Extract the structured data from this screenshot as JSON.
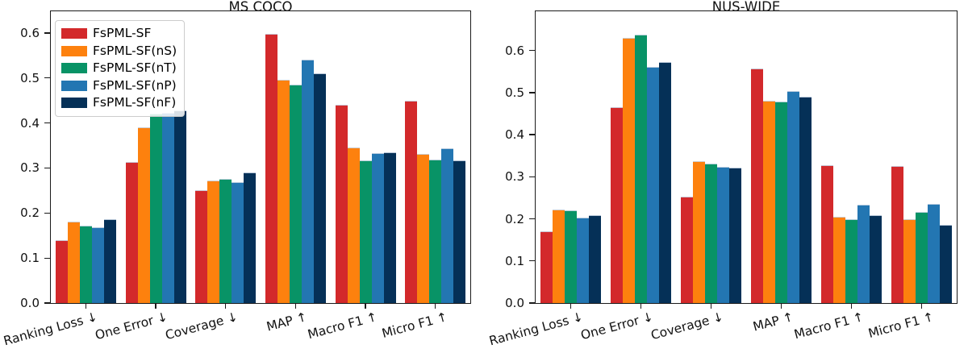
{
  "figure": {
    "background": "#ffffff",
    "legend": {
      "position": "upper-left of MS COCO panel",
      "entries": [
        {
          "label": "FsPML-SF",
          "color": "#d3292b"
        },
        {
          "label": "FsPML-SF(nS)",
          "color": "#fd810e"
        },
        {
          "label": "FsPML-SF(nT)",
          "color": "#089366"
        },
        {
          "label": "FsPML-SF(nP)",
          "color": "#2376b2"
        },
        {
          "label": "FsPML-SF(nF)",
          "color": "#053057"
        }
      ]
    }
  },
  "chart_data": [
    {
      "type": "bar",
      "title": "MS COCO",
      "categories": [
        "Ranking Loss ↓",
        "One Error ↓",
        "Coverage ↓",
        "MAP ↑",
        "Macro F1 ↑",
        "Micro F1 ↑"
      ],
      "series": [
        {
          "name": "FsPML-SF",
          "values": [
            0.14,
            0.313,
            0.25,
            0.598,
            0.441,
            0.45
          ]
        },
        {
          "name": "FsPML-SF(nS)",
          "values": [
            0.18,
            0.39,
            0.272,
            0.495,
            0.345,
            0.332
          ]
        },
        {
          "name": "FsPML-SF(nT)",
          "values": [
            0.171,
            0.42,
            0.275,
            0.485,
            0.316,
            0.319
          ]
        },
        {
          "name": "FsPML-SF(nP)",
          "values": [
            0.169,
            0.423,
            0.269,
            0.54,
            0.333,
            0.343
          ]
        },
        {
          "name": "FsPML-SF(nF)",
          "values": [
            0.187,
            0.428,
            0.29,
            0.511,
            0.335,
            0.316
          ]
        }
      ],
      "yticks": [
        0.0,
        0.1,
        0.2,
        0.3,
        0.4,
        0.5,
        0.6
      ],
      "ylim": [
        0,
        0.648
      ],
      "grid": false,
      "xlabel": "",
      "ylabel": ""
    },
    {
      "type": "bar",
      "title": "NUS-WIDE",
      "categories": [
        "Ranking Loss ↓",
        "One Error ↓",
        "Coverage ↓",
        "MAP ↑",
        "Macro F1 ↑",
        "Micro F1 ↑"
      ],
      "series": [
        {
          "name": "FsPML-SF",
          "values": [
            0.17,
            0.465,
            0.252,
            0.558,
            0.327,
            0.325
          ]
        },
        {
          "name": "FsPML-SF(nS)",
          "values": [
            0.222,
            0.63,
            0.337,
            0.481,
            0.204,
            0.199
          ]
        },
        {
          "name": "FsPML-SF(nT)",
          "values": [
            0.22,
            0.638,
            0.331,
            0.478,
            0.2,
            0.216
          ]
        },
        {
          "name": "FsPML-SF(nP)",
          "values": [
            0.203,
            0.56,
            0.324,
            0.503,
            0.233,
            0.235
          ]
        },
        {
          "name": "FsPML-SF(nF)",
          "values": [
            0.208,
            0.573,
            0.321,
            0.491,
            0.209,
            0.186
          ]
        }
      ],
      "yticks": [
        0.0,
        0.1,
        0.2,
        0.3,
        0.4,
        0.5,
        0.6
      ],
      "ylim": [
        0,
        0.693
      ],
      "grid": false,
      "xlabel": "",
      "ylabel": ""
    }
  ]
}
